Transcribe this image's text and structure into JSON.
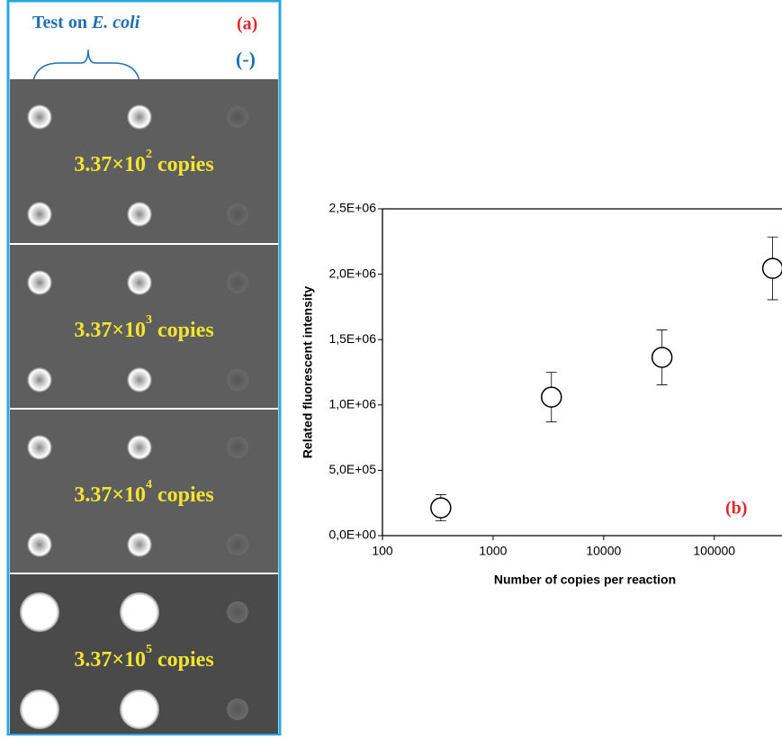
{
  "photo": {
    "title_plain": "Test on ",
    "title_italic": "E. coli",
    "panel_label": "(a)",
    "negative_label": "(-)",
    "panels": [
      {
        "base": "3.37×10",
        "exponent": "2",
        "unit": "copies"
      },
      {
        "base": "3.37×10",
        "exponent": "3",
        "unit": "copies"
      },
      {
        "base": "3.37×10",
        "exponent": "4",
        "unit": "copies"
      },
      {
        "base": "3.37×10",
        "exponent": "5",
        "unit": "copies"
      }
    ]
  },
  "chart_data": {
    "type": "scatter",
    "log_x": true,
    "x_label": "Number of copies per reaction",
    "y_label": "Related fluorescent intensity",
    "annotation": "(b)",
    "x": [
      337,
      3370,
      33700,
      337000
    ],
    "values": [
      213000,
      1060000,
      1364000,
      2045000
    ],
    "errors": [
      100000,
      190000,
      210000,
      240000
    ],
    "color": "#000000",
    "xlim": [
      100,
      380000
    ],
    "xticks": [
      100,
      1000,
      10000,
      100000
    ],
    "ylim": [
      0,
      2500000
    ],
    "yticks": [
      {
        "value": 0,
        "label": "0,0E+00"
      },
      {
        "value": 500000,
        "label": "5,0E+05"
      },
      {
        "value": 1000000,
        "label": "1,0E+06"
      },
      {
        "value": 1500000,
        "label": "1,5E+06"
      },
      {
        "value": 2000000,
        "label": "2,0E+06"
      },
      {
        "value": 2500000,
        "label": "2,5E+06"
      }
    ]
  }
}
